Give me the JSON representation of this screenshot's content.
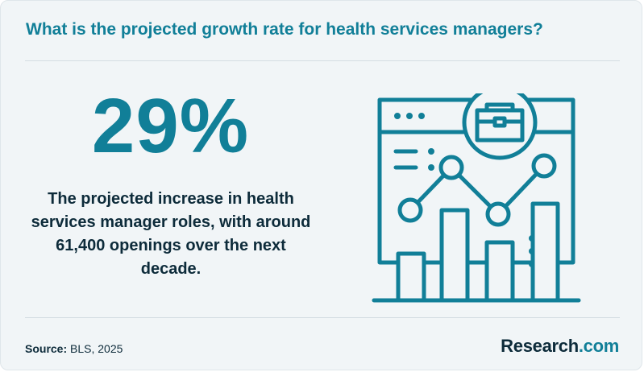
{
  "header": {
    "title": "What is the projected growth rate for health services managers?"
  },
  "stat": {
    "value": "29%",
    "description": "The projected increase in health services manager roles, with around 61,400 openings over the next decade."
  },
  "footer": {
    "source_label": "Source:",
    "source_value": "BLS, 2025",
    "brand_name": "Research",
    "brand_tld": ".com"
  },
  "illustration": {
    "icon": "browser-bar-chart-briefcase-icon",
    "color": "#117f98"
  },
  "colors": {
    "accent": "#117f98",
    "text_dark": "#0d2b3a",
    "background": "#f1f5f7"
  }
}
